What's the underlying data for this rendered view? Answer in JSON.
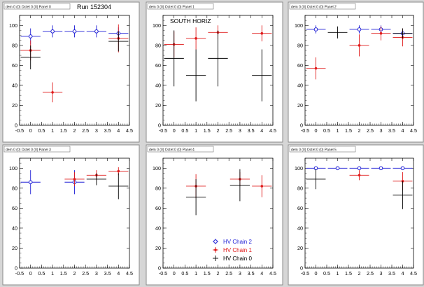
{
  "run_label": "Run 152304",
  "colors": {
    "chain2": "#1f1fd6",
    "chain1": "#e01b1b",
    "chain0": "#000000",
    "background": "#d6d6d6"
  },
  "legend": {
    "entries": [
      {
        "label": "HV Chain 2",
        "marker": "open-circle",
        "color": "#1f1fd6"
      },
      {
        "label": "HV Chain 1",
        "marker": "star",
        "color": "#e01b1b"
      },
      {
        "label": "HV Chain 0",
        "marker": "plus",
        "color": "#000000"
      }
    ]
  },
  "chart_data": [
    {
      "type": "scatter",
      "title": "dem 0 (0) Octet 0 (0) Panel 0",
      "label": "",
      "xlim": [
        -0.5,
        4.5
      ],
      "ylim": [
        0,
        110
      ],
      "grid": false,
      "x_ticks": [
        "-0.5",
        "0",
        "0.5",
        "1",
        "1.5",
        "2",
        "2.5",
        "3",
        "3.5",
        "4",
        "4.5"
      ],
      "y_ticks": [
        "0",
        "20",
        "40",
        "60",
        "80",
        "100"
      ],
      "series": [
        {
          "name": "HV Chain 2",
          "points": [
            {
              "x": 0,
              "y": 89,
              "ye": 8
            },
            {
              "x": 1,
              "y": 94,
              "ye": 6
            },
            {
              "x": 2,
              "y": 94,
              "ye": 6
            },
            {
              "x": 3,
              "y": 94,
              "ye": 6
            },
            {
              "x": 4,
              "y": 92,
              "ye": 6
            }
          ]
        },
        {
          "name": "HV Chain 1",
          "points": [
            {
              "x": 0,
              "y": 75,
              "ye": 10
            },
            {
              "x": 1,
              "y": 33,
              "ye": 10
            },
            {
              "x": 4,
              "y": 87,
              "ye": 14
            }
          ]
        },
        {
          "name": "HV Chain 0",
          "points": [
            {
              "x": 0,
              "y": 68,
              "ye": 12
            },
            {
              "x": 4,
              "y": 84,
              "ye": 10
            }
          ]
        }
      ]
    },
    {
      "type": "scatter",
      "title": "dem 0 (0) Octet 0 (0) Panel 1",
      "label": "SOUTH HORIZ",
      "xlim": [
        -0.5,
        4.5
      ],
      "ylim": [
        0,
        110
      ],
      "grid": false,
      "x_ticks": [
        "-0.5",
        "0",
        "0.5",
        "1",
        "1.5",
        "2",
        "2.5",
        "3",
        "3.5",
        "4",
        "4.5"
      ],
      "y_ticks": [
        "0",
        "20",
        "40",
        "60",
        "80",
        "100"
      ],
      "series": [
        {
          "name": "HV Chain 2",
          "points": []
        },
        {
          "name": "HV Chain 1",
          "points": [
            {
              "x": 0,
              "y": 81,
              "ye": 13
            },
            {
              "x": 1,
              "y": 87,
              "ye": 11
            },
            {
              "x": 2,
              "y": 93,
              "ye": 7
            },
            {
              "x": 4,
              "y": 92,
              "ye": 8
            }
          ]
        },
        {
          "name": "HV Chain 0",
          "points": [
            {
              "x": 0,
              "y": 67,
              "ye": 28
            },
            {
              "x": 1,
              "y": 50,
              "ye": 26
            },
            {
              "x": 2,
              "y": 67,
              "ye": 28
            },
            {
              "x": 4,
              "y": 50,
              "ye": 26
            }
          ]
        }
      ]
    },
    {
      "type": "scatter",
      "title": "dem 0 (0) Octet 0 (0) Panel 2",
      "label": "",
      "xlim": [
        -0.5,
        4.5
      ],
      "ylim": [
        0,
        110
      ],
      "grid": false,
      "x_ticks": [
        "-0.5",
        "0",
        "0.5",
        "1",
        "1.5",
        "2",
        "2.5",
        "3",
        "3.5",
        "4",
        "4.5"
      ],
      "y_ticks": [
        "0",
        "20",
        "40",
        "60",
        "80",
        "100"
      ],
      "series": [
        {
          "name": "HV Chain 2",
          "points": [
            {
              "x": 0,
              "y": 96,
              "ye": 4
            },
            {
              "x": 2,
              "y": 96,
              "ye": 4
            },
            {
              "x": 3,
              "y": 96,
              "ye": 4
            },
            {
              "x": 4,
              "y": 92,
              "ye": 5
            }
          ]
        },
        {
          "name": "HV Chain 1",
          "points": [
            {
              "x": 0,
              "y": 57,
              "ye": 11
            },
            {
              "x": 2,
              "y": 80,
              "ye": 11
            },
            {
              "x": 3,
              "y": 92,
              "ye": 7
            },
            {
              "x": 4,
              "y": 88,
              "ye": 9
            }
          ]
        },
        {
          "name": "HV Chain 0",
          "points": [
            {
              "x": 1,
              "y": 93,
              "ye": 6
            },
            {
              "x": 4,
              "y": 92,
              "ye": 5
            }
          ]
        }
      ]
    },
    {
      "type": "scatter",
      "title": "dem 0 (0) Octet 0 (0) Panel 3",
      "label": "",
      "xlim": [
        -0.5,
        4.5
      ],
      "ylim": [
        0,
        110
      ],
      "grid": false,
      "x_ticks": [
        "-0.5",
        "0",
        "0.5",
        "1",
        "1.5",
        "2",
        "2.5",
        "3",
        "3.5",
        "4",
        "4.5"
      ],
      "y_ticks": [
        "0",
        "20",
        "40",
        "60",
        "80",
        "100"
      ],
      "series": [
        {
          "name": "HV Chain 2",
          "points": [
            {
              "x": 0,
              "y": 86,
              "ye": 12
            },
            {
              "x": 2,
              "y": 86,
              "ye": 12
            }
          ]
        },
        {
          "name": "HV Chain 1",
          "points": [
            {
              "x": 2,
              "y": 89,
              "ye": 7
            },
            {
              "x": 3,
              "y": 93,
              "ye": 5
            },
            {
              "x": 4,
              "y": 97,
              "ye": 4
            }
          ]
        },
        {
          "name": "HV Chain 0",
          "points": [
            {
              "x": 3,
              "y": 89,
              "ye": 6
            },
            {
              "x": 4,
              "y": 82,
              "ye": 13
            }
          ]
        }
      ]
    },
    {
      "type": "scatter",
      "title": "dem 0 (0) Octet 0 (0) Panel 4",
      "label": "",
      "xlim": [
        -0.5,
        4.5
      ],
      "ylim": [
        0,
        110
      ],
      "grid": false,
      "x_ticks": [
        "-0.5",
        "0",
        "0.5",
        "1",
        "1.5",
        "2",
        "2.5",
        "3",
        "3.5",
        "4",
        "4.5"
      ],
      "y_ticks": [
        "0",
        "20",
        "40",
        "60",
        "80",
        "100"
      ],
      "series": [
        {
          "name": "HV Chain 2",
          "points": []
        },
        {
          "name": "HV Chain 1",
          "points": [
            {
              "x": 1,
              "y": 82,
              "ye": 12
            },
            {
              "x": 3,
              "y": 89,
              "ye": 7
            },
            {
              "x": 4,
              "y": 82,
              "ye": 11
            }
          ]
        },
        {
          "name": "HV Chain 0",
          "points": [
            {
              "x": 1,
              "y": 71,
              "ye": 18
            },
            {
              "x": 3,
              "y": 83,
              "ye": 16
            }
          ]
        }
      ],
      "show_legend": true
    },
    {
      "type": "scatter",
      "title": "dem 0 (0) Octet 0 (0) Panel 5",
      "label": "",
      "xlim": [
        -0.5,
        4.5
      ],
      "ylim": [
        0,
        110
      ],
      "grid": false,
      "x_ticks": [
        "-0.5",
        "0",
        "0.5",
        "1",
        "1.5",
        "2",
        "2.5",
        "3",
        "3.5",
        "4",
        "4.5"
      ],
      "y_ticks": [
        "0",
        "20",
        "40",
        "60",
        "80",
        "100"
      ],
      "series": [
        {
          "name": "HV Chain 2",
          "points": [
            {
              "x": 0,
              "y": 100,
              "ye": 1
            },
            {
              "x": 1,
              "y": 100,
              "ye": 1
            },
            {
              "x": 2,
              "y": 100,
              "ye": 1
            },
            {
              "x": 3,
              "y": 100,
              "ye": 1
            },
            {
              "x": 4,
              "y": 100,
              "ye": 1
            }
          ]
        },
        {
          "name": "HV Chain 1",
          "points": [
            {
              "x": 2,
              "y": 93,
              "ye": 5
            },
            {
              "x": 4,
              "y": 87,
              "ye": 9
            }
          ]
        },
        {
          "name": "HV Chain 0",
          "points": [
            {
              "x": 0,
              "y": 89,
              "ye": 10
            },
            {
              "x": 4,
              "y": 73,
              "ye": 14
            }
          ]
        }
      ]
    }
  ]
}
